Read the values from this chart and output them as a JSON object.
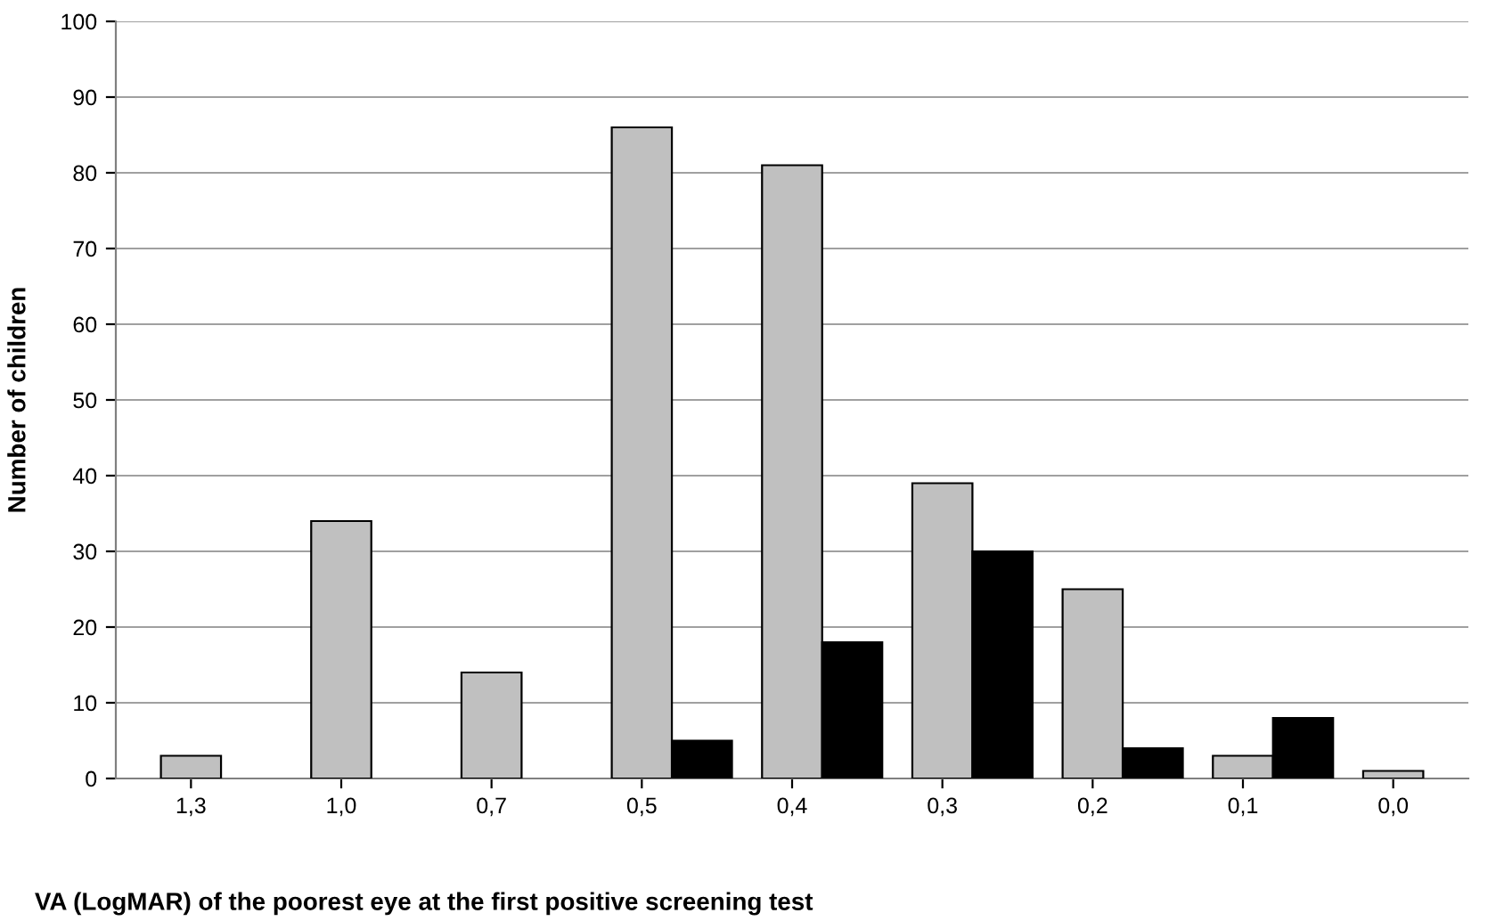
{
  "chart_data": {
    "type": "bar",
    "xlabel": "VA (LogMAR) of the poorest eye at the first positive screening test",
    "ylabel": "Number of children",
    "categories": [
      "1,3",
      "1,0",
      "0,7",
      "0,5",
      "0,4",
      "0,3",
      "0,2",
      "0,1",
      "0,0"
    ],
    "series": [
      {
        "color": "#c0c0c0",
        "values": [
          3,
          34,
          14,
          86,
          81,
          39,
          25,
          3,
          1
        ]
      },
      {
        "color": "#000000",
        "values": [
          null,
          null,
          null,
          5,
          18,
          30,
          4,
          8,
          null
        ]
      }
    ],
    "ylim": [
      0,
      100
    ],
    "yticks": [
      0,
      10,
      20,
      30,
      40,
      50,
      60,
      70,
      80,
      90,
      100
    ],
    "grid": "y"
  }
}
